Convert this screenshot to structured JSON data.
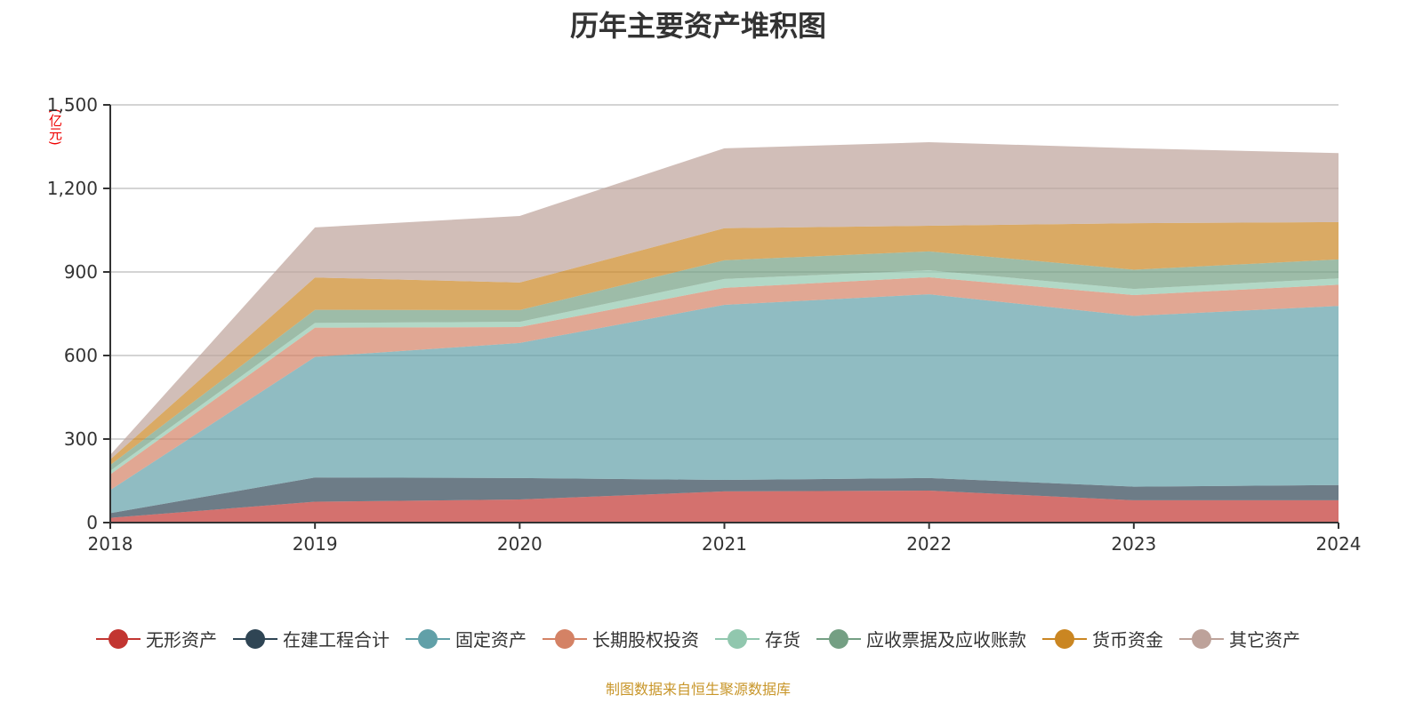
{
  "chart_data": {
    "type": "area",
    "stacked": true,
    "title": "历年主要资产堆积图",
    "ylabel": "(亿元)",
    "xlabel": "",
    "categories": [
      "2018",
      "2019",
      "2020",
      "2021",
      "2022",
      "2023",
      "2024"
    ],
    "ylim": [
      0,
      1500
    ],
    "yticks": [
      "0",
      "300",
      "600",
      "900",
      "1,200",
      "1,500"
    ],
    "ytick_values": [
      0,
      300,
      600,
      900,
      1200,
      1500
    ],
    "grid": true,
    "legend_position": "bottom",
    "series": [
      {
        "name": "无形资产",
        "color": "#c23531",
        "values": [
          17,
          75,
          83,
          112,
          115,
          80,
          80
        ]
      },
      {
        "name": "在建工程合计",
        "color": "#2f4554",
        "values": [
          17,
          87,
          77,
          41,
          45,
          49,
          55
        ]
      },
      {
        "name": "固定资产",
        "color": "#61a0a8",
        "values": [
          83,
          433,
          485,
          629,
          660,
          613,
          643
        ]
      },
      {
        "name": "长期股权投资",
        "color": "#d48265",
        "values": [
          56,
          105,
          57,
          61,
          61,
          75,
          76
        ]
      },
      {
        "name": "存货",
        "color": "#91c7ae",
        "values": [
          13,
          17,
          19,
          32,
          25,
          22,
          23
        ]
      },
      {
        "name": "应收票据及应收账款",
        "color": "#749f83",
        "values": [
          21,
          47,
          42,
          67,
          68,
          69,
          68
        ]
      },
      {
        "name": "货币资金",
        "color": "#ca8622",
        "values": [
          20,
          116,
          99,
          115,
          92,
          167,
          134
        ]
      },
      {
        "name": "其它资产",
        "color": "#bda29a",
        "values": [
          16,
          180,
          239,
          287,
          300,
          269,
          248
        ]
      }
    ]
  },
  "footer": "制图数据来自恒生聚源数据库"
}
